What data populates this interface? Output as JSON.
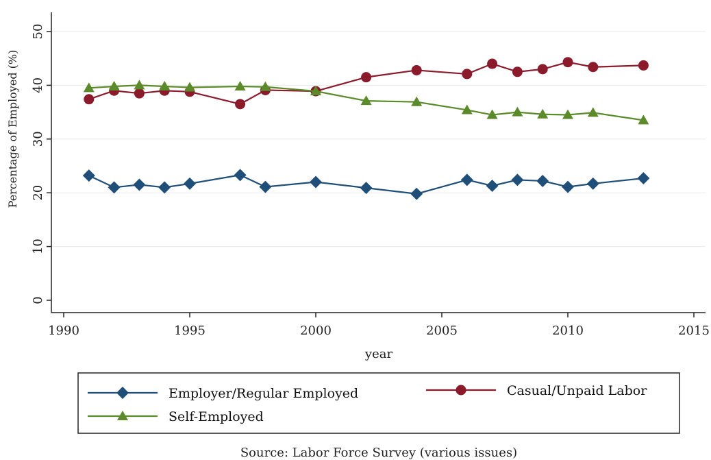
{
  "chart_data": {
    "type": "line",
    "xlabel": "year",
    "ylabel": "Percentage of Employed (%)",
    "xlim": [
      1990,
      2015
    ],
    "ylim": [
      0,
      50
    ],
    "x_ticks": [
      1990,
      1995,
      2000,
      2005,
      2010,
      2015
    ],
    "y_ticks": [
      0,
      10,
      20,
      30,
      40,
      50
    ],
    "grid": "horizontal",
    "legend_position": "bottom",
    "source": "Source: Labor Force Survey (various issues)",
    "series": [
      {
        "name": "Employer/Regular Employed",
        "color": "#1f4e79",
        "marker": "diamond",
        "x": [
          1991,
          1992,
          1993,
          1994,
          1995,
          1997,
          1998,
          2000,
          2002,
          2004,
          2006,
          2007,
          2008,
          2009,
          2010,
          2011,
          2013
        ],
        "values": [
          23.2,
          21.0,
          21.5,
          21.0,
          21.7,
          23.3,
          21.1,
          22.0,
          20.9,
          19.8,
          22.4,
          21.3,
          22.4,
          22.2,
          21.1,
          21.7,
          22.7
        ]
      },
      {
        "name": "Casual/Unpaid Labor",
        "color": "#8b1a2a",
        "marker": "circle",
        "x": [
          1991,
          1992,
          1993,
          1994,
          1995,
          1997,
          1998,
          2000,
          2002,
          2004,
          2006,
          2007,
          2008,
          2009,
          2010,
          2011,
          2013
        ],
        "values": [
          37.4,
          39.0,
          38.5,
          39.0,
          38.8,
          36.5,
          39.1,
          38.9,
          41.5,
          42.8,
          42.1,
          44.0,
          42.5,
          43.0,
          44.3,
          43.4,
          43.7
        ]
      },
      {
        "name": "Self-Employed",
        "color": "#5a8a2a",
        "marker": "triangle",
        "x": [
          1991,
          1992,
          1993,
          1994,
          1995,
          1997,
          1998,
          2000,
          2002,
          2004,
          2006,
          2007,
          2008,
          2009,
          2010,
          2011,
          2013
        ],
        "values": [
          39.5,
          39.8,
          40.0,
          39.8,
          39.6,
          39.8,
          39.7,
          38.9,
          37.1,
          36.9,
          35.4,
          34.5,
          35.0,
          34.6,
          34.5,
          34.9,
          33.5
        ]
      }
    ]
  }
}
